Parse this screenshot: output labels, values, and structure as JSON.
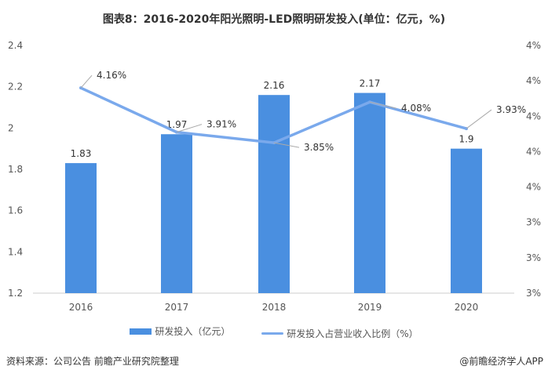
{
  "chart_data": {
    "type": "bar+line",
    "title": "图表8：2016-2020年阳光照明-LED照明研发投入(单位：亿元，%)",
    "categories": [
      "2016",
      "2017",
      "2018",
      "2019",
      "2020"
    ],
    "series": [
      {
        "name": "研发投入（亿元）",
        "type": "bar",
        "axis": "left",
        "values": [
          1.83,
          1.97,
          2.16,
          2.17,
          1.9
        ],
        "labels": [
          "1.83",
          "1.97",
          "2.16",
          "2.17",
          "1.9"
        ],
        "color": "#4a8fe0"
      },
      {
        "name": "研发投入占营业收入比例（%）",
        "type": "line",
        "axis": "right",
        "values": [
          4.16,
          3.91,
          3.85,
          4.08,
          3.93
        ],
        "labels": [
          "4.16%",
          "3.91%",
          "3.85%",
          "4.08%",
          "3.93%"
        ],
        "color": "#7aa9ec"
      }
    ],
    "left_axis": {
      "ylim": [
        1.2,
        2.4
      ],
      "ticks": [
        "1.2",
        "1.4",
        "1.6",
        "1.8",
        "2",
        "2.2",
        "2.4"
      ]
    },
    "right_axis": {
      "ylim": [
        3.0,
        4.4
      ],
      "ticks": [
        "3%",
        "3%",
        "3%",
        "4%",
        "4%",
        "4%",
        "4%",
        "4%"
      ]
    },
    "grid": false,
    "legend": "bottom"
  },
  "footer": {
    "source": "资料来源：公司公告 前瞻产业研究院整理",
    "credit": "@前瞻经济学人APP"
  }
}
